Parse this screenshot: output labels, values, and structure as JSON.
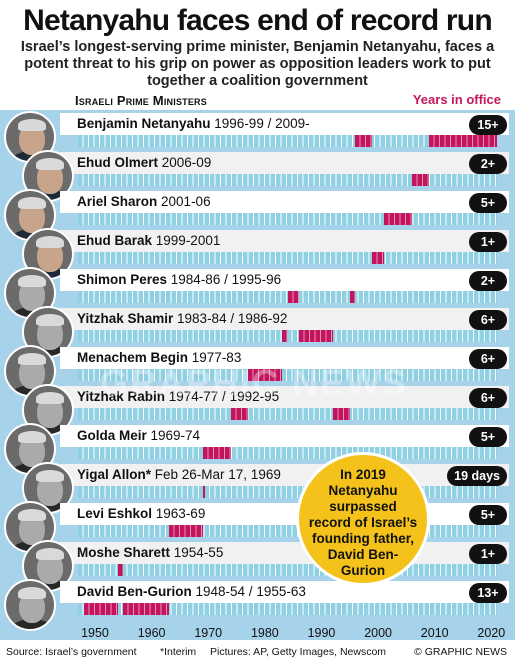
{
  "title": "Netanyahu faces end of record run",
  "subtitle": "Israel’s longest-serving prime minister, Benjamin Netanyahu, faces a potent threat to his grip on power as opposition leaders work to put together a coalition government",
  "section_label": "Israeli Prime Ministers",
  "years_label": "Years in office",
  "callout": "In 2019 Netanyahu surpassed record of Israel’s founding father, David Ben-Gurion",
  "watermark": "GRAPHIC NEWS",
  "footer": {
    "source": "Source: Israel’s government",
    "note": "*Interim",
    "pictures": "Pictures: AP, Getty Images, Newscom",
    "brand": "© GRAPHIC NEWS"
  },
  "colors": {
    "accent": "#c4145e",
    "panel": "#a6d2ea",
    "track": "#8fd0e2",
    "callout": "#f4c21a"
  },
  "chart_data": {
    "type": "bar",
    "subtype": "timeline",
    "title": "Netanyahu faces end of record run",
    "xlim": [
      1947,
      2021
    ],
    "x_ticks": [
      1950,
      1960,
      1970,
      1980,
      1990,
      2000,
      2010,
      2020
    ],
    "series": [
      {
        "name": "Benjamin Netanyahu",
        "dates": "1996-99 / 2009-",
        "badge": "15+",
        "terms": [
          [
            1996,
            1999
          ],
          [
            2009,
            2021
          ]
        ]
      },
      {
        "name": "Ehud Olmert",
        "dates": "2006-09",
        "badge": "2+",
        "terms": [
          [
            2006,
            2009
          ]
        ]
      },
      {
        "name": "Ariel Sharon",
        "dates": "2001-06",
        "badge": "5+",
        "terms": [
          [
            2001,
            2006
          ]
        ]
      },
      {
        "name": "Ehud Barak",
        "dates": "1999-2001",
        "badge": "1+",
        "terms": [
          [
            1999,
            2001
          ]
        ]
      },
      {
        "name": "Shimon Peres",
        "dates": "1984-86 / 1995-96",
        "badge": "2+",
        "terms": [
          [
            1984,
            1986
          ],
          [
            1995,
            1996
          ]
        ]
      },
      {
        "name": "Yitzhak Shamir",
        "dates": "1983-84 / 1986-92",
        "badge": "6+",
        "terms": [
          [
            1983,
            1984
          ],
          [
            1986,
            1992
          ]
        ]
      },
      {
        "name": "Menachem Begin",
        "dates": "1977-83",
        "badge": "6+",
        "terms": [
          [
            1977,
            1983
          ]
        ]
      },
      {
        "name": "Yitzhak Rabin",
        "dates": "1974-77 / 1992-95",
        "badge": "6+",
        "terms": [
          [
            1974,
            1977
          ],
          [
            1992,
            1995
          ]
        ]
      },
      {
        "name": "Golda Meir",
        "dates": "1969-74",
        "badge": "5+",
        "terms": [
          [
            1969,
            1974
          ]
        ]
      },
      {
        "name": "Yigal Allon*",
        "dates": "Feb 26-Mar 17, 1969",
        "badge": "19 days",
        "terms": [
          [
            1969.15,
            1969.22
          ]
        ]
      },
      {
        "name": "Levi Eshkol",
        "dates": "1963-69",
        "badge": "5+",
        "terms": [
          [
            1963,
            1969
          ]
        ]
      },
      {
        "name": "Moshe Sharett",
        "dates": "1954-55",
        "badge": "1+",
        "terms": [
          [
            1954,
            1955
          ]
        ]
      },
      {
        "name": "David Ben-Gurion",
        "dates": "1948-54 / 1955-63",
        "badge": "13+",
        "terms": [
          [
            1948,
            1954
          ],
          [
            1955,
            1963
          ]
        ]
      }
    ]
  }
}
